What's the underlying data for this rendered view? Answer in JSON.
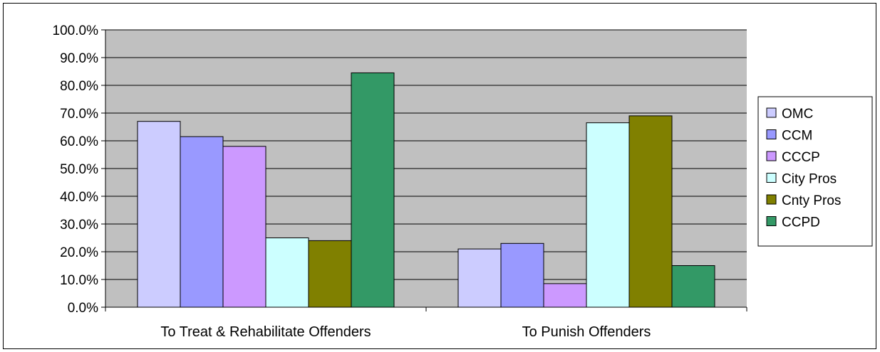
{
  "chart_data": {
    "type": "bar",
    "categories": [
      "To Treat & Rehabilitate Offenders",
      "To Punish Offenders"
    ],
    "series": [
      {
        "name": "OMC",
        "values": [
          67.0,
          21.0
        ],
        "color": "#CCCCFF"
      },
      {
        "name": "CCM",
        "values": [
          61.5,
          23.0
        ],
        "color": "#9999FF"
      },
      {
        "name": "CCCP",
        "values": [
          58.0,
          8.5
        ],
        "color": "#CC99FF"
      },
      {
        "name": "City Pros",
        "values": [
          25.0,
          66.5
        ],
        "color": "#CCFFFF"
      },
      {
        "name": "Cnty Pros",
        "values": [
          24.0,
          69.0
        ],
        "color": "#808000"
      },
      {
        "name": "CCPD",
        "values": [
          84.5,
          15.0
        ],
        "color": "#339966"
      }
    ],
    "ylim": [
      0,
      100
    ],
    "yticks": [
      "0.0%",
      "10.0%",
      "20.0%",
      "30.0%",
      "40.0%",
      "50.0%",
      "60.0%",
      "70.0%",
      "80.0%",
      "90.0%",
      "100.0%"
    ],
    "grid": true,
    "plot_background": "#C0C0C0",
    "legend": "right",
    "title": "",
    "xlabel": "",
    "ylabel": ""
  }
}
